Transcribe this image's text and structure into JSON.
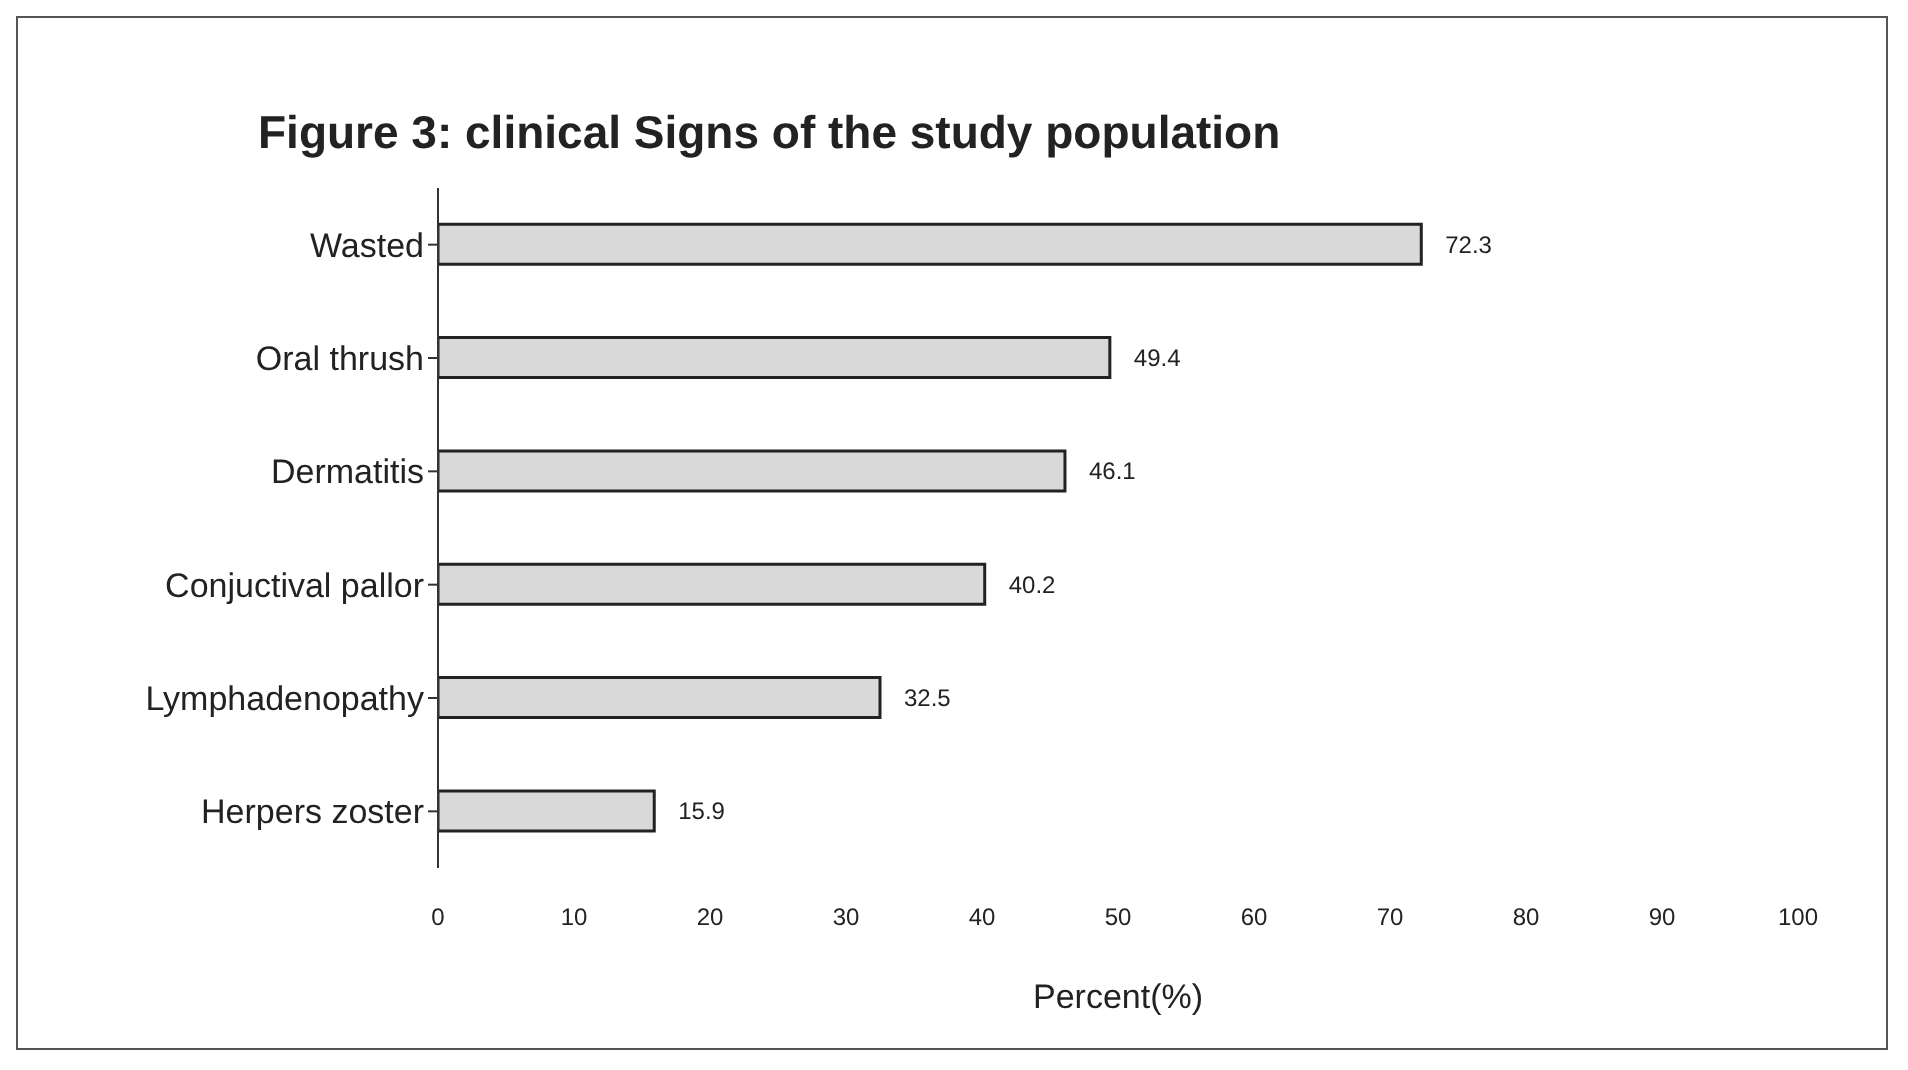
{
  "chart_data": {
    "type": "bar",
    "orientation": "horizontal",
    "title": "Figure 3: clinical Signs of the study population",
    "xlabel": "Percent(%)",
    "categories": [
      "Wasted",
      "Oral thrush",
      "Dermatitis",
      "Conjuctival pallor",
      "Lymphadenopathy",
      "Herpers zoster"
    ],
    "values": [
      72.3,
      49.4,
      46.1,
      40.2,
      32.5,
      15.9
    ],
    "color": "#d9d9d9",
    "xlim": [
      0,
      100
    ],
    "xticks": [
      0,
      10,
      20,
      30,
      40,
      50,
      60,
      70,
      80,
      90,
      100
    ],
    "data_labels": true
  }
}
